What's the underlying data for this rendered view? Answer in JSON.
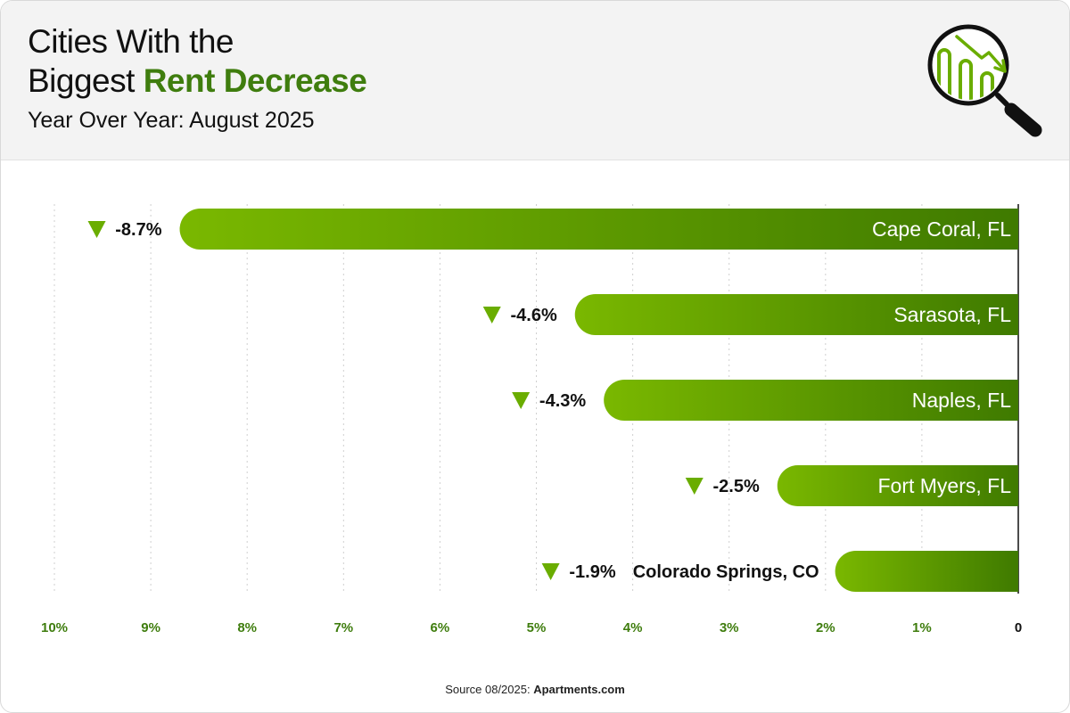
{
  "header": {
    "title_line1": "Cities With the",
    "title_line2_plain": "Biggest ",
    "title_line2_accent": "Rent Decrease",
    "subtitle": "Year Over Year: August 2025",
    "icon": "magnifier-declining-bars-icon"
  },
  "colors": {
    "accent": "#3f7d0e",
    "bar_light": "#7ab800",
    "bar_dark": "#3f7a00",
    "arrow": "#6aad00",
    "tick": "#3f7d0e"
  },
  "chart_data": {
    "type": "bar",
    "orientation": "horizontal",
    "direction": "right-to-left",
    "categories": [
      "Cape Coral, FL",
      "Sarasota, FL",
      "Naples, FL",
      "Fort Myers, FL",
      "Colorado Springs, CO"
    ],
    "values": [
      -8.7,
      -4.6,
      -4.3,
      -2.5,
      -1.9
    ],
    "value_labels": [
      "-8.7%",
      "-4.6%",
      "-4.3%",
      "-2.5%",
      "-1.9%"
    ],
    "xlim": [
      0,
      10
    ],
    "x_ticks": [
      "10%",
      "9%",
      "8%",
      "7%",
      "6%",
      "5%",
      "4%",
      "3%",
      "2%",
      "1%",
      "0"
    ],
    "grid": true,
    "legend": "none"
  },
  "footer": {
    "source_prefix": "Source 08/2025: ",
    "source_brand": "Apartments.com"
  }
}
